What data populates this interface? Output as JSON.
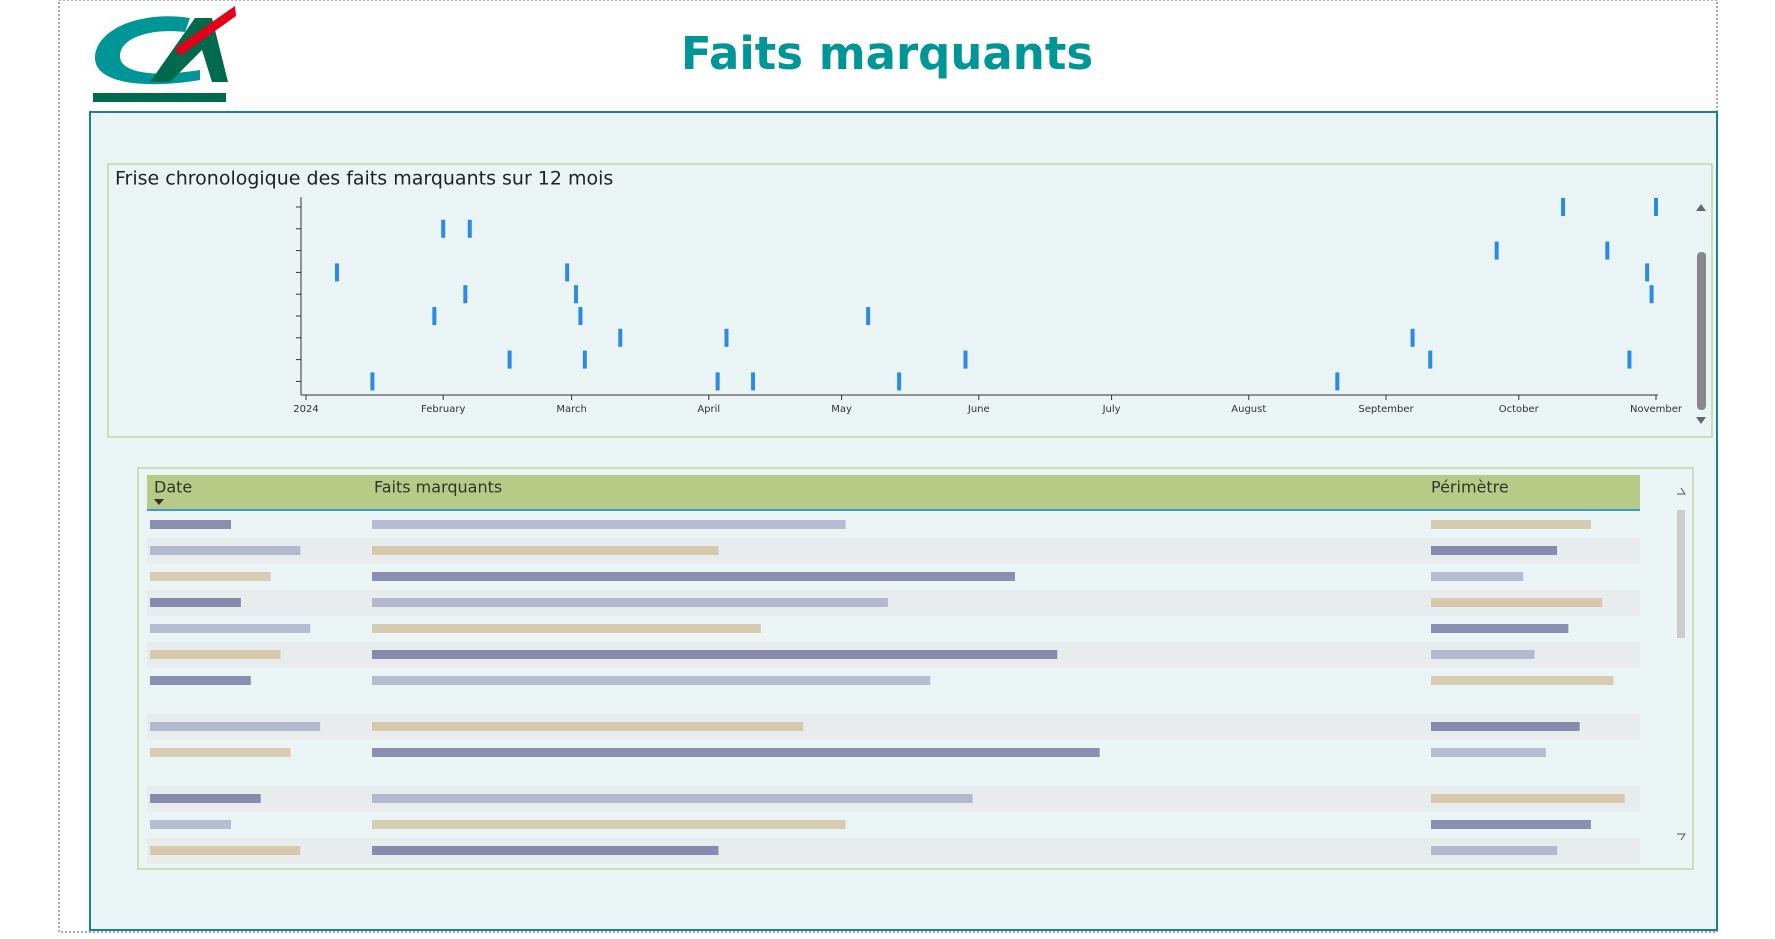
{
  "header": {
    "title": "Faits marquants"
  },
  "chart_data": {
    "type": "timeline",
    "title": "Frise chronologique des faits marquants sur 12 mois",
    "categories": [
      null,
      null,
      null,
      null,
      null,
      null,
      null,
      null,
      null
    ],
    "events": [
      [
        284,
        305
      ],
      [
        31,
        37
      ],
      [
        269,
        294
      ],
      [
        7,
        59,
        303
      ],
      [
        36,
        61,
        304
      ],
      [
        29,
        62,
        127
      ],
      [
        71,
        95,
        250
      ],
      [
        46,
        63,
        149,
        254,
        299
      ],
      [
        15,
        93,
        101,
        134,
        233
      ]
    ],
    "color": "#2b8ae6",
    "xlim": [
      0,
      305
    ],
    "xticks": [
      {
        "value": 0,
        "label": "2024"
      },
      {
        "value": 31,
        "label": "February"
      },
      {
        "value": 60,
        "label": "March"
      },
      {
        "value": 91,
        "label": "April"
      },
      {
        "value": 121,
        "label": "May"
      },
      {
        "value": 152,
        "label": "June"
      },
      {
        "value": 182,
        "label": "July"
      },
      {
        "value": 213,
        "label": "August"
      },
      {
        "value": 244,
        "label": "September"
      },
      {
        "value": 274,
        "label": "October"
      },
      {
        "value": 305,
        "label": "November"
      }
    ]
  },
  "table": {
    "columns": [
      "Date",
      "Faits marquants",
      "Périmètre"
    ]
  }
}
